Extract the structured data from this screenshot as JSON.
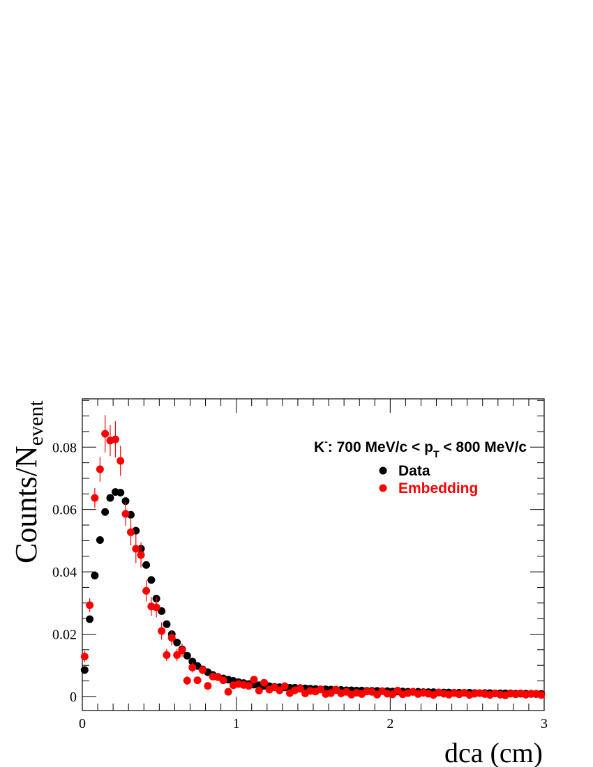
{
  "chart_data": {
    "type": "scatter",
    "title": "",
    "annotation": {
      "particle": "K",
      "charge": "-",
      "text_before_sub": ": 700 MeV/c < p",
      "subscript": "T",
      "text_after_sub": " < 800 MeV/c"
    },
    "xlabel": "dca (cm)",
    "ylabel": {
      "main": "Counts/N",
      "subscript": "event"
    },
    "xlim": [
      0,
      3
    ],
    "ylim": [
      -0.0045,
      0.0955
    ],
    "x_ticks": [
      {
        "value": 0,
        "label": "0"
      },
      {
        "value": 1,
        "label": "1"
      },
      {
        "value": 2,
        "label": "2"
      },
      {
        "value": 3,
        "label": "3"
      }
    ],
    "y_ticks": [
      {
        "value": 0,
        "label": "0"
      },
      {
        "value": 0.02,
        "label": "0.02"
      },
      {
        "value": 0.04,
        "label": "0.04"
      },
      {
        "value": 0.06,
        "label": "0.06"
      },
      {
        "value": 0.08,
        "label": "0.08"
      }
    ],
    "grid": false,
    "legend_position": "top-right",
    "series": [
      {
        "name": "Data",
        "color": "#000000",
        "x": [
          0.015,
          0.048,
          0.081,
          0.115,
          0.148,
          0.181,
          0.215,
          0.248,
          0.281,
          0.315,
          0.348,
          0.381,
          0.415,
          0.448,
          0.481,
          0.515,
          0.548,
          0.581,
          0.615,
          0.648,
          0.681,
          0.715,
          0.748,
          0.781,
          0.815,
          0.848,
          0.881,
          0.915,
          0.948,
          0.981,
          1.015,
          1.048,
          1.081,
          1.115,
          1.148,
          1.181,
          1.215,
          1.248,
          1.281,
          1.315,
          1.348,
          1.381,
          1.415,
          1.448,
          1.481,
          1.515,
          1.548,
          1.581,
          1.615,
          1.648,
          1.681,
          1.715,
          1.748,
          1.781,
          1.815,
          1.848,
          1.881,
          1.915,
          1.948,
          1.981,
          2.015,
          2.048,
          2.081,
          2.115,
          2.148,
          2.181,
          2.215,
          2.248,
          2.281,
          2.315,
          2.348,
          2.381,
          2.415,
          2.448,
          2.481,
          2.515,
          2.548,
          2.581,
          2.615,
          2.648,
          2.681,
          2.715,
          2.748,
          2.781,
          2.815,
          2.848,
          2.881,
          2.915,
          2.948,
          2.981
        ],
        "y": [
          0.0085,
          0.0248,
          0.0388,
          0.0502,
          0.0592,
          0.0637,
          0.0656,
          0.0654,
          0.0627,
          0.0583,
          0.0532,
          0.0474,
          0.0422,
          0.0374,
          0.0314,
          0.0274,
          0.0232,
          0.02,
          0.0173,
          0.0151,
          0.0131,
          0.0112,
          0.0098,
          0.0087,
          0.0078,
          0.0069,
          0.0063,
          0.0058,
          0.0054,
          0.005,
          0.0046,
          0.0043,
          0.004,
          0.0038,
          0.0036,
          0.0034,
          0.0033,
          0.0031,
          0.003,
          0.0029,
          0.0028,
          0.0028,
          0.0027,
          0.0026,
          0.0025,
          0.0024,
          0.0023,
          0.0023,
          0.0022,
          0.0021,
          0.0021,
          0.002,
          0.002,
          0.0019,
          0.0019,
          0.0018,
          0.0018,
          0.0018,
          0.0017,
          0.0017,
          0.0016,
          0.0016,
          0.0016,
          0.0015,
          0.0015,
          0.0015,
          0.0014,
          0.0014,
          0.0014,
          0.0013,
          0.0013,
          0.0013,
          0.0012,
          0.0012,
          0.0012,
          0.0012,
          0.0011,
          0.0011,
          0.0011,
          0.0011,
          0.001,
          0.001,
          0.001,
          0.001,
          0.0009,
          0.0009,
          0.0009,
          0.0009,
          0.0008,
          0.0008
        ]
      },
      {
        "name": "Embedding",
        "color": "#ff0000",
        "x": [
          0.015,
          0.048,
          0.081,
          0.115,
          0.148,
          0.181,
          0.215,
          0.248,
          0.281,
          0.315,
          0.348,
          0.381,
          0.415,
          0.448,
          0.481,
          0.515,
          0.548,
          0.581,
          0.615,
          0.648,
          0.681,
          0.715,
          0.748,
          0.781,
          0.815,
          0.848,
          0.881,
          0.915,
          0.948,
          0.981,
          1.015,
          1.048,
          1.081,
          1.115,
          1.148,
          1.181,
          1.215,
          1.248,
          1.281,
          1.315,
          1.348,
          1.381,
          1.415,
          1.448,
          1.481,
          1.515,
          1.548,
          1.581,
          1.615,
          1.648,
          1.681,
          1.715,
          1.748,
          1.781,
          1.815,
          1.848,
          1.881,
          1.915,
          1.948,
          1.981,
          2.015,
          2.048,
          2.081,
          2.115,
          2.148,
          2.181,
          2.215,
          2.248,
          2.281,
          2.315,
          2.348,
          2.381,
          2.415,
          2.448,
          2.481,
          2.515,
          2.548,
          2.581,
          2.615,
          2.648,
          2.681,
          2.715,
          2.748,
          2.781,
          2.815,
          2.848,
          2.881,
          2.915,
          2.948,
          2.981
        ],
        "y": [
          0.0128,
          0.0293,
          0.0637,
          0.0729,
          0.0843,
          0.0821,
          0.0825,
          0.0756,
          0.0586,
          0.0527,
          0.0474,
          0.0454,
          0.0339,
          0.0289,
          0.0286,
          0.021,
          0.0133,
          0.0188,
          0.0133,
          0.0148,
          0.0051,
          0.0093,
          0.0052,
          0.0085,
          0.0034,
          0.0064,
          0.0062,
          0.0052,
          0.0015,
          0.0036,
          0.004,
          0.0037,
          0.0034,
          0.0054,
          0.0019,
          0.0044,
          0.0022,
          0.003,
          0.002,
          0.0033,
          0.0011,
          0.002,
          0.0025,
          0.001,
          0.0018,
          0.0016,
          0.0023,
          0.0008,
          0.0011,
          0.0022,
          0.001,
          0.0015,
          0.0006,
          0.0012,
          0.0008,
          0.0016,
          0.0015,
          0.0006,
          0.0017,
          0.0009,
          0.0007,
          0.0019,
          0.0007,
          0.0011,
          0.0015,
          0.0008,
          0.0012,
          0.0009,
          0.0005,
          0.0013,
          0.0009,
          0.0006,
          0.0011,
          0.0007,
          0.0012,
          0.0005,
          0.0009,
          0.0011,
          0.0008,
          0.0005,
          0.001,
          0.0006,
          0.0004,
          0.0009,
          0.0007,
          0.001,
          0.0006,
          0.0008,
          0.0009,
          0.0005
        ],
        "yerr": [
          0.0018,
          0.0022,
          0.0032,
          0.004,
          0.006,
          0.005,
          0.0058,
          0.0048,
          0.0038,
          0.0042,
          0.0046,
          0.004,
          0.0034,
          0.003,
          0.0032,
          0.0028,
          0.002,
          0.0024,
          0.002,
          0.0022,
          0.0014,
          0.0016,
          0.0012,
          0.0014,
          0.001,
          0.0012,
          0.0012,
          0.001,
          0.0008,
          0.0008,
          0.001,
          0.0008,
          0.0008,
          0.001,
          0.0006,
          0.0008,
          0.0006,
          0.0006,
          0.0006,
          0.0006,
          0.0005,
          0.0005,
          0.0005,
          0.0005,
          0.0005,
          0.0005,
          0.0005,
          0.0004,
          0.0004,
          0.0005,
          0.0004,
          0.0004,
          0.0004,
          0.0004,
          0.0004,
          0.0004,
          0.0004,
          0.0004,
          0.0004,
          0.0004,
          0.0004,
          0.0004,
          0.0004,
          0.0004,
          0.0004,
          0.0004,
          0.0004,
          0.0004,
          0.0004,
          0.0004,
          0.0004,
          0.0004,
          0.0004,
          0.0004,
          0.0004,
          0.0004,
          0.0004,
          0.0004,
          0.0004,
          0.0004,
          0.0004,
          0.0004,
          0.0004,
          0.0004,
          0.0004,
          0.0004,
          0.0004,
          0.0004,
          0.0004,
          0.0004
        ]
      }
    ]
  }
}
